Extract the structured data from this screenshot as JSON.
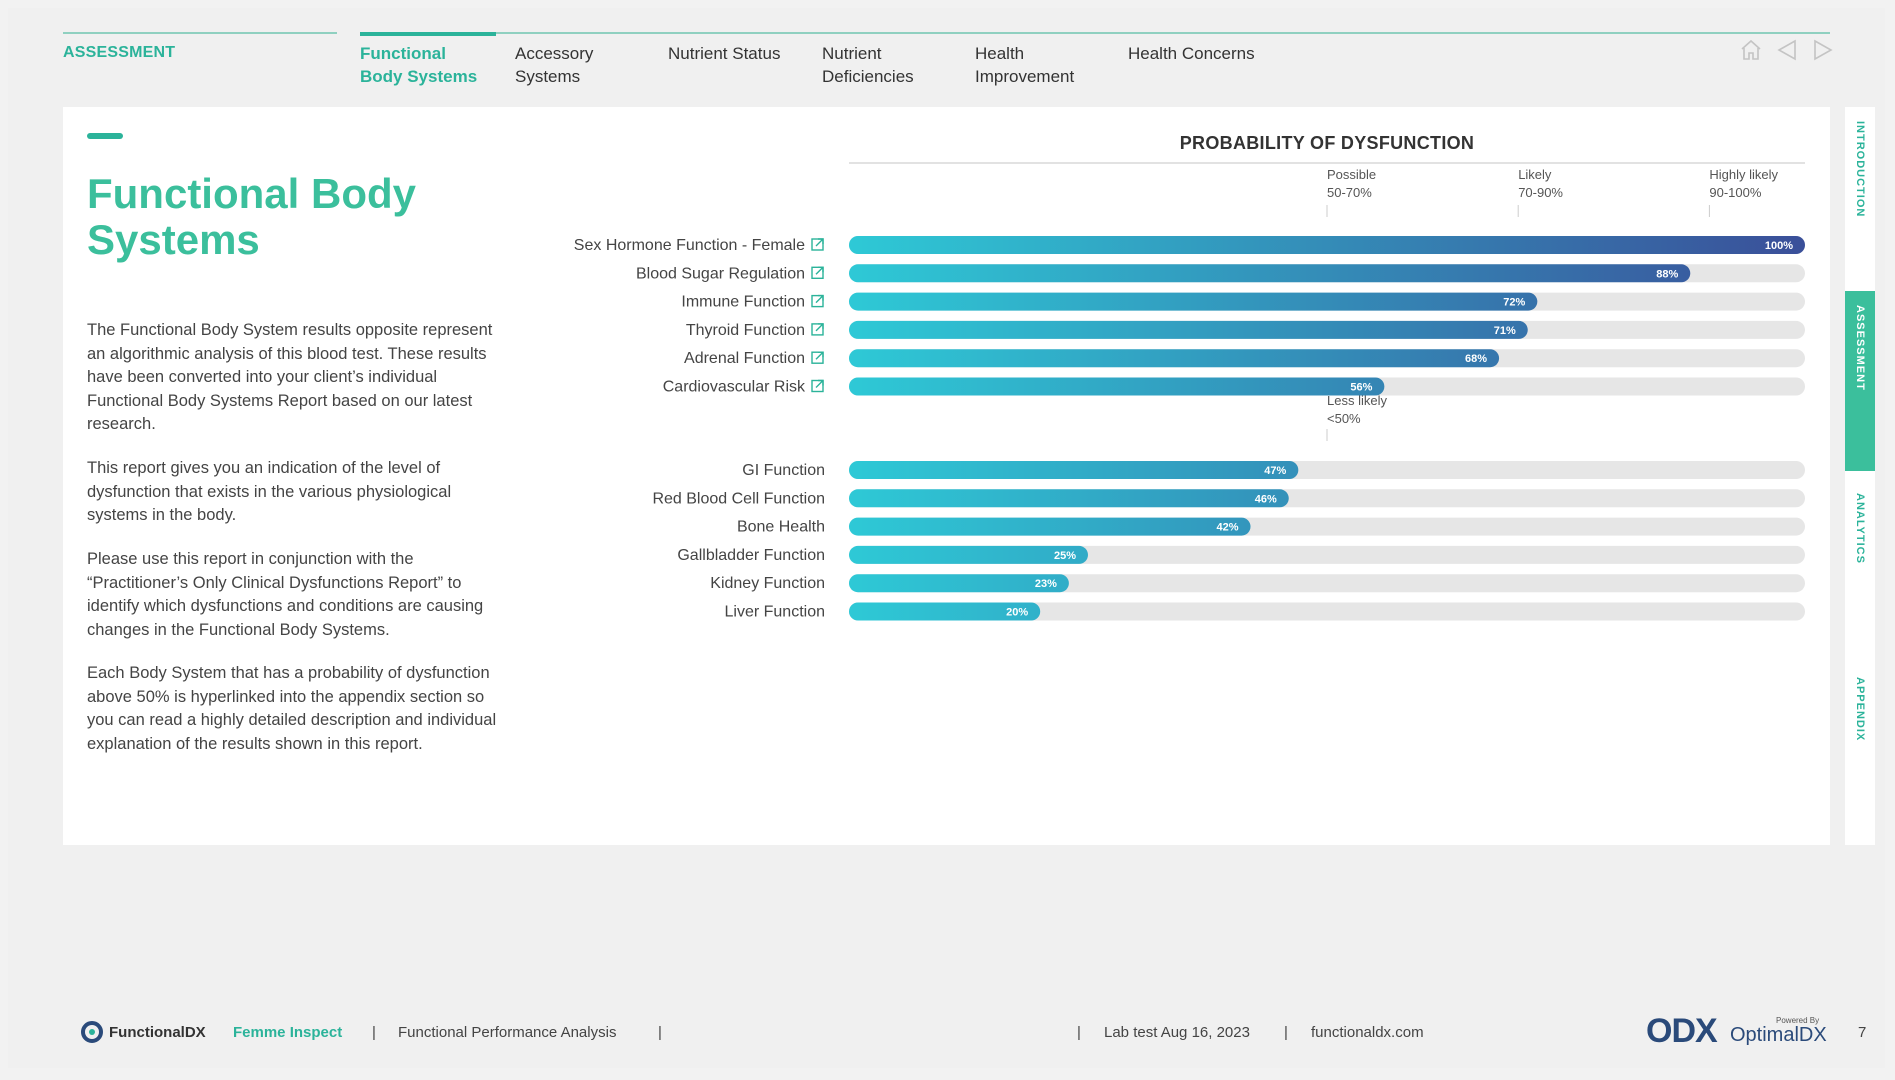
{
  "nav": {
    "section": "ASSESSMENT",
    "tabs": [
      {
        "label_line1": "Functional",
        "label_line2": "Body Systems",
        "active": true
      },
      {
        "label_line1": "Accessory",
        "label_line2": "Systems",
        "active": false
      },
      {
        "label_line1": "Nutrient Status",
        "label_line2": "",
        "active": false
      },
      {
        "label_line1": "Nutrient",
        "label_line2": "Deficiencies",
        "active": false
      },
      {
        "label_line1": "Health",
        "label_line2": "Improvement",
        "active": false
      },
      {
        "label_line1": "Health Concerns",
        "label_line2": "",
        "active": false
      }
    ],
    "icons": [
      "home-icon",
      "back-arrow-icon",
      "forward-arrow-icon"
    ]
  },
  "main": {
    "title": "Functional Body Systems",
    "paragraphs": [
      "The Functional Body System results opposite represent an algorithmic analysis of this blood test. These results have been converted into your client’s individual Functional Body Systems Report based on our latest research.",
      "This report gives you an indication of the level of dysfunction that exists in the various physiological systems in the body.",
      "Please use this report in conjunction with the “Practitioner’s Only Clinical Dysfunctions Report” to identify which dysfunctions and conditions are causing changes in the Functional Body Systems.",
      "Each Body System that has a probability of dysfunction above 50% is hyperlinked into the appendix section so you can read a highly detailed description and individual explanation of the results shown in this report."
    ]
  },
  "chart_data": {
    "type": "bar",
    "title": "PROBABILITY OF DYSFUNCTION",
    "orientation": "horizontal",
    "xlim": [
      0,
      100
    ],
    "unit": "%",
    "thresholds": [
      {
        "label_line1": "Possible",
        "label_line2": "50-70%",
        "value": 50
      },
      {
        "label_line1": "Likely",
        "label_line2": "70-90%",
        "value": 70
      },
      {
        "label_line1": "Highly likely",
        "label_line2": "90-100%",
        "value": 90
      }
    ],
    "lower_threshold": {
      "label_line1": "Less likely",
      "label_line2": "<50%",
      "value": 50
    },
    "groups": [
      {
        "categories": [
          "Sex Hormone Function - Female",
          "Blood Sugar Regulation",
          "Immune Function",
          "Thyroid Function",
          "Adrenal Function",
          "Cardiovascular Risk"
        ],
        "values": [
          100,
          88,
          72,
          71,
          68,
          56
        ],
        "linked": true
      },
      {
        "categories": [
          "GI Function",
          "Red Blood Cell Function",
          "Bone Health",
          "Gallbladder Function",
          "Kidney Function",
          "Liver Function"
        ],
        "values": [
          47,
          46,
          42,
          25,
          23,
          20
        ],
        "linked": false
      }
    ],
    "colors": {
      "bar_start": "#2ec9d6",
      "bar_end": "#3a4f99",
      "track": "#e6e6e6"
    }
  },
  "rail": [
    "INTRODUCTION",
    "ASSESSMENT",
    "ANALYTICS",
    "APPENDIX"
  ],
  "rail_active": "ASSESSMENT",
  "footer": {
    "brand": "FunctionalDX",
    "product": "Femme Inspect",
    "sep1": "|",
    "report": "Functional Performance Analysis",
    "sep2": "|",
    "sep3": "|",
    "lab": "Lab test Aug 16, 2023",
    "sep4": "|",
    "site": "functionaldx.com",
    "powered": "Powered By",
    "logo_mark": "ODX",
    "logo_name": "OptimalDX",
    "page": "7"
  }
}
